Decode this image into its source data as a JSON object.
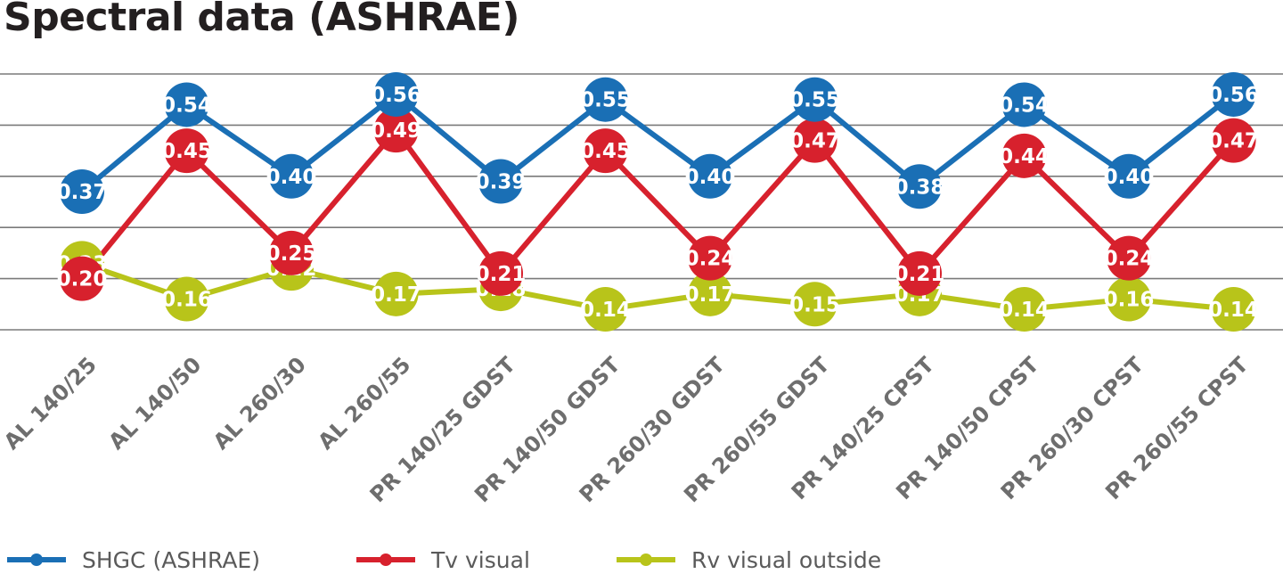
{
  "chart_data": {
    "type": "line",
    "title": "Spectral data (ASHRAE)",
    "xlabel": "",
    "ylabel": "",
    "ylim": [
      0.1,
      0.6
    ],
    "grid": true,
    "legend_position": "bottom",
    "categories": [
      "AL 140/25",
      "AL 140/50",
      "AL 260/30",
      "AL 260/55",
      "PR 140/25 GDST",
      "PR 140/50 GDST",
      "PR 260/30 GDST",
      "PR 260/55 GDST",
      "PR 140/25 CPST",
      "PR 140/50 CPST",
      "PR 260/30 CPST",
      "PR 260/55 CPST"
    ],
    "series": [
      {
        "name": "SHGC (ASHRAE)",
        "color": "#1a6fb5",
        "values": [
          0.37,
          0.54,
          0.4,
          0.56,
          0.39,
          0.55,
          0.4,
          0.55,
          0.38,
          0.54,
          0.4,
          0.56
        ]
      },
      {
        "name": "Tv visual",
        "color": "#d7212d",
        "values": [
          0.2,
          0.45,
          0.25,
          0.49,
          0.21,
          0.45,
          0.24,
          0.47,
          0.21,
          0.44,
          0.24,
          0.47
        ]
      },
      {
        "name": "Rv visual outside",
        "color": "#b8c41a",
        "values": [
          0.23,
          0.16,
          0.22,
          0.17,
          0.18,
          0.14,
          0.17,
          0.15,
          0.17,
          0.14,
          0.16,
          0.14
        ]
      }
    ]
  }
}
